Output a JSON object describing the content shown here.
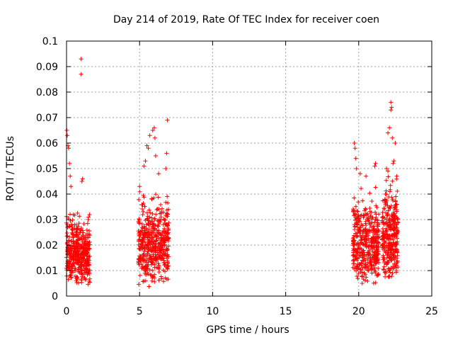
{
  "chart_data": {
    "type": "scatter",
    "title": "Day 214 of 2019, Rate Of TEC Index for receiver coen",
    "xlabel": "GPS time / hours",
    "ylabel": "ROTI / TECUs",
    "xlim": [
      0,
      25
    ],
    "ylim": [
      0,
      0.1
    ],
    "xticks": [
      0,
      5,
      10,
      15,
      20,
      25
    ],
    "xtick_labels": [
      "0",
      "5",
      "10",
      "15",
      "20",
      "25"
    ],
    "yticks": [
      0,
      0.01,
      0.02,
      0.03,
      0.04,
      0.05,
      0.06,
      0.07,
      0.08,
      0.09,
      0.1
    ],
    "ytick_labels": [
      "0",
      "0.01",
      "0.02",
      "0.03",
      "0.04",
      "0.05",
      "0.06",
      "0.07",
      "0.08",
      "0.09",
      "0.1"
    ],
    "grid": true,
    "marker": "+",
    "color": "#ff0000",
    "clusters": [
      {
        "x_range": [
          0.0,
          1.6
        ],
        "y_range": [
          0.003,
          0.036
        ],
        "count": 420
      },
      {
        "x_range": [
          4.9,
          7.0
        ],
        "y_range": [
          0.003,
          0.045
        ],
        "count": 480
      },
      {
        "x_range": [
          19.6,
          21.4
        ],
        "y_range": [
          0.003,
          0.045
        ],
        "count": 420
      },
      {
        "x_range": [
          21.6,
          22.7
        ],
        "y_range": [
          0.004,
          0.052
        ],
        "count": 320
      }
    ],
    "outliers": [
      {
        "x": 0.02,
        "y": 0.065
      },
      {
        "x": 0.05,
        "y": 0.063
      },
      {
        "x": 0.1,
        "y": 0.059
      },
      {
        "x": 0.15,
        "y": 0.058
      },
      {
        "x": 0.2,
        "y": 0.052
      },
      {
        "x": 0.25,
        "y": 0.047
      },
      {
        "x": 1.0,
        "y": 0.093
      },
      {
        "x": 1.0,
        "y": 0.087
      },
      {
        "x": 1.1,
        "y": 0.046
      },
      {
        "x": 1.05,
        "y": 0.045
      },
      {
        "x": 0.3,
        "y": 0.043
      },
      {
        "x": 5.5,
        "y": 0.059
      },
      {
        "x": 5.6,
        "y": 0.058
      },
      {
        "x": 5.7,
        "y": 0.063
      },
      {
        "x": 5.9,
        "y": 0.065
      },
      {
        "x": 6.0,
        "y": 0.066
      },
      {
        "x": 6.05,
        "y": 0.062
      },
      {
        "x": 6.1,
        "y": 0.055
      },
      {
        "x": 5.4,
        "y": 0.053
      },
      {
        "x": 5.3,
        "y": 0.051
      },
      {
        "x": 6.9,
        "y": 0.069
      },
      {
        "x": 6.85,
        "y": 0.056
      },
      {
        "x": 6.8,
        "y": 0.05
      },
      {
        "x": 6.3,
        "y": 0.048
      },
      {
        "x": 5.0,
        "y": 0.043
      },
      {
        "x": 19.7,
        "y": 0.06
      },
      {
        "x": 19.75,
        "y": 0.058
      },
      {
        "x": 19.8,
        "y": 0.054
      },
      {
        "x": 19.85,
        "y": 0.05
      },
      {
        "x": 20.1,
        "y": 0.048
      },
      {
        "x": 20.5,
        "y": 0.047
      },
      {
        "x": 21.1,
        "y": 0.051
      },
      {
        "x": 21.15,
        "y": 0.052
      },
      {
        "x": 22.2,
        "y": 0.076
      },
      {
        "x": 22.25,
        "y": 0.074
      },
      {
        "x": 22.2,
        "y": 0.073
      },
      {
        "x": 22.0,
        "y": 0.064
      },
      {
        "x": 22.1,
        "y": 0.066
      },
      {
        "x": 22.3,
        "y": 0.062
      },
      {
        "x": 22.5,
        "y": 0.06
      },
      {
        "x": 22.4,
        "y": 0.053
      },
      {
        "x": 22.35,
        "y": 0.052
      },
      {
        "x": 21.9,
        "y": 0.05
      },
      {
        "x": 22.0,
        "y": 0.049
      },
      {
        "x": 22.6,
        "y": 0.047
      }
    ]
  }
}
